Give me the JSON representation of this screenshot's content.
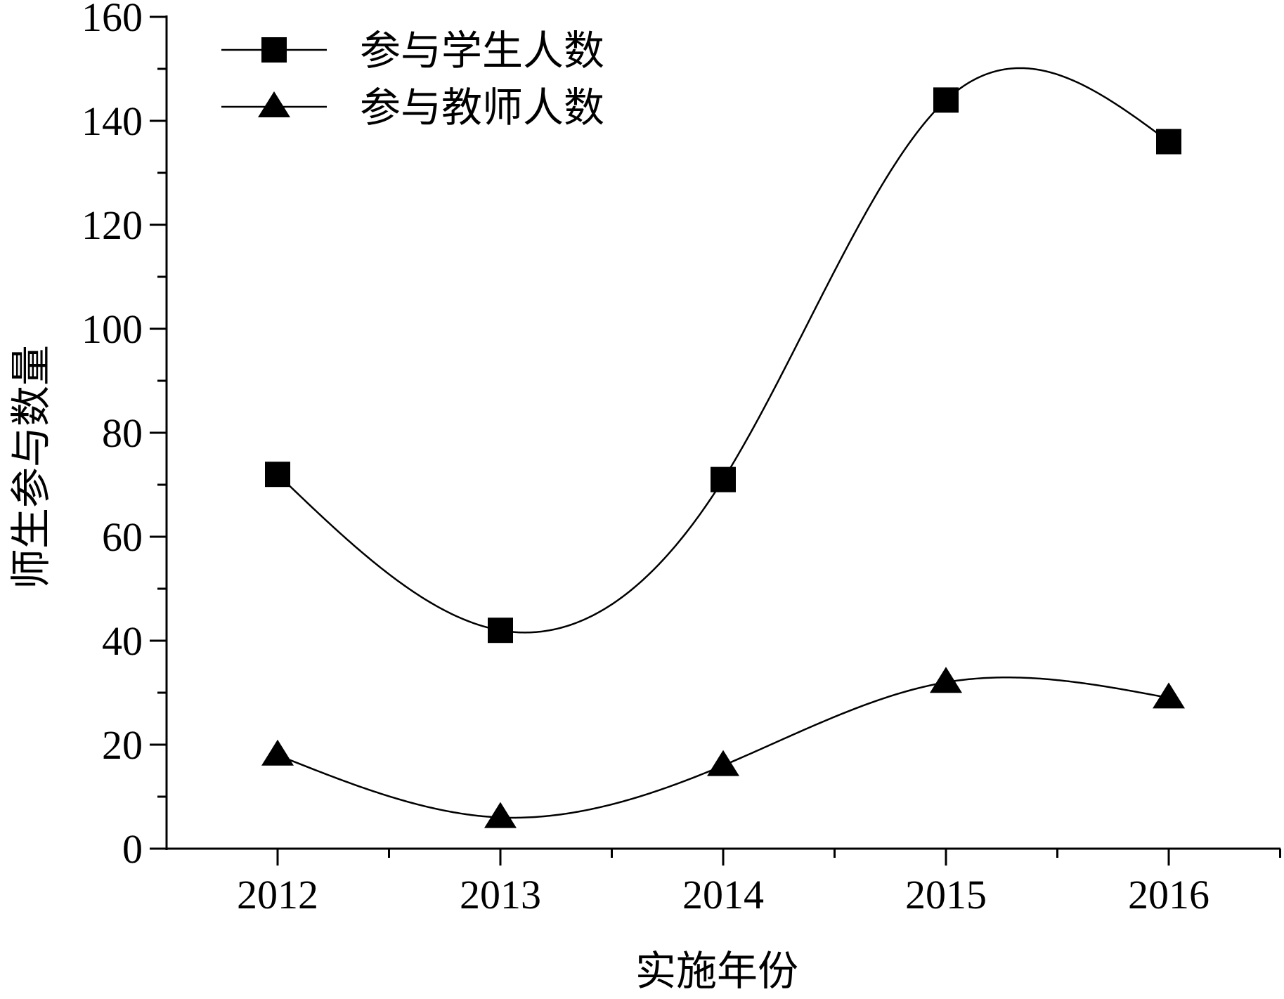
{
  "chart_data": {
    "type": "line",
    "categories": [
      "2012",
      "2013",
      "2014",
      "2015",
      "2016"
    ],
    "series": [
      {
        "name": "参与学生人数",
        "marker": "square",
        "values": [
          72,
          42,
          71,
          144,
          136
        ]
      },
      {
        "name": "参与教师人数",
        "marker": "triangle",
        "values": [
          18,
          6,
          16,
          32,
          29
        ]
      }
    ],
    "xlabel": "实施年份",
    "ylabel": "师生参与数量",
    "ylim": [
      0,
      160
    ],
    "yticks": [
      "0",
      "20",
      "40",
      "60",
      "80",
      "100",
      "120",
      "140",
      "160"
    ],
    "smooth": true,
    "grid": false,
    "legend_position": "top-left",
    "colors": {
      "line": "#000000",
      "marker": "#000000",
      "background": "#ffffff"
    }
  }
}
